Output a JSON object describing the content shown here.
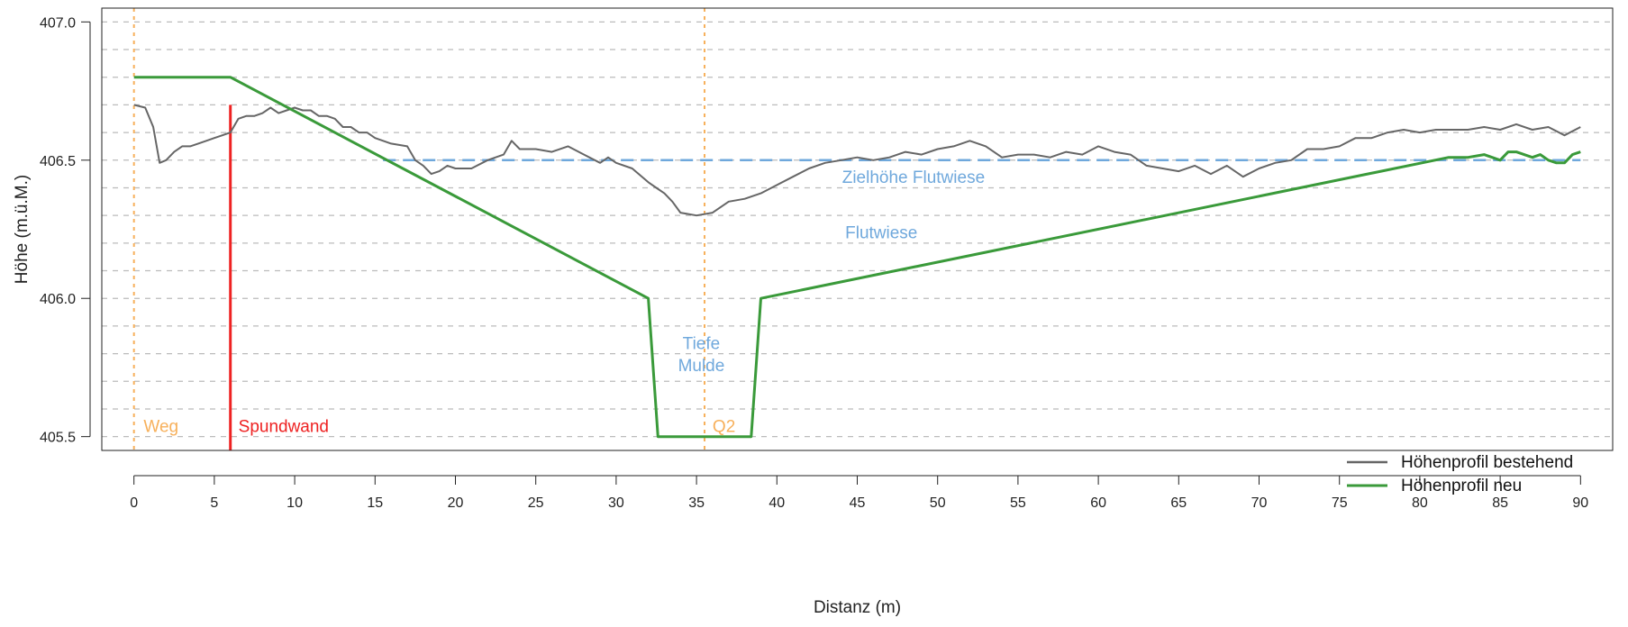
{
  "chart_data": {
    "type": "line",
    "xlabel": "Distanz (m)",
    "ylabel": "Höhe (m.ü.M.)",
    "xlim": [
      -2,
      92
    ],
    "ylim": [
      405.45,
      407.05
    ],
    "xticks": [
      0,
      5,
      10,
      15,
      20,
      25,
      30,
      35,
      40,
      45,
      50,
      55,
      60,
      65,
      70,
      75,
      80,
      85,
      90
    ],
    "yticks": [
      405.5,
      406.0,
      406.5,
      407.0
    ],
    "ytick_labels": [
      "405.5",
      "406.0",
      "406.5",
      "407.0"
    ],
    "grid": "horizontal dashed every 0.1 m",
    "legend_position": "bottom-right",
    "series": [
      {
        "name": "Höhenprofil bestehend",
        "color": "#666666",
        "x": [
          0,
          0.7,
          1.2,
          1.6,
          2.0,
          2.5,
          3.0,
          3.5,
          4.0,
          4.5,
          5.0,
          5.5,
          6.0,
          6.5,
          7.0,
          7.5,
          8.0,
          8.5,
          9.0,
          9.5,
          10.0,
          10.5,
          11.0,
          11.5,
          12.0,
          12.5,
          13.0,
          13.5,
          14.0,
          14.5,
          15.0,
          16.0,
          17.0,
          17.5,
          18.0,
          18.5,
          19.0,
          19.5,
          20.0,
          21.0,
          22.0,
          23.0,
          23.5,
          24.0,
          25.0,
          26.0,
          27.0,
          28.0,
          29.0,
          29.5,
          30.0,
          31.0,
          32.0,
          32.5,
          33.0,
          33.5,
          34.0,
          35.0,
          36.0,
          37.0,
          38.0,
          39.0,
          40.0,
          41.0,
          42.0,
          43.0,
          44.0,
          45.0,
          46.0,
          47.0,
          48.0,
          49.0,
          50.0,
          51.0,
          52.0,
          53.0,
          54.0,
          55.0,
          56.0,
          57.0,
          58.0,
          59.0,
          60.0,
          61.0,
          62.0,
          63.0,
          64.0,
          65.0,
          66.0,
          67.0,
          68.0,
          69.0,
          70.0,
          71.0,
          72.0,
          73.0,
          74.0,
          75.0,
          76.0,
          77.0,
          78.0,
          79.0,
          80.0,
          81.0,
          82.0,
          83.0,
          84.0,
          85.0,
          86.0,
          87.0,
          88.0,
          89.0,
          90.0
        ],
        "y": [
          406.7,
          406.69,
          406.62,
          406.49,
          406.5,
          406.53,
          406.55,
          406.55,
          406.56,
          406.57,
          406.58,
          406.59,
          406.6,
          406.65,
          406.66,
          406.66,
          406.67,
          406.69,
          406.67,
          406.68,
          406.69,
          406.68,
          406.68,
          406.66,
          406.66,
          406.65,
          406.62,
          406.62,
          406.6,
          406.6,
          406.58,
          406.56,
          406.55,
          406.5,
          406.48,
          406.45,
          406.46,
          406.48,
          406.47,
          406.47,
          406.5,
          406.52,
          406.57,
          406.54,
          406.54,
          406.53,
          406.55,
          406.52,
          406.49,
          406.51,
          406.49,
          406.47,
          406.42,
          406.4,
          406.38,
          406.35,
          406.31,
          406.3,
          406.31,
          406.35,
          406.36,
          406.38,
          406.41,
          406.44,
          406.47,
          406.49,
          406.5,
          406.51,
          406.5,
          406.51,
          406.53,
          406.52,
          406.54,
          406.55,
          406.57,
          406.55,
          406.51,
          406.52,
          406.52,
          406.51,
          406.53,
          406.52,
          406.55,
          406.53,
          406.52,
          406.48,
          406.47,
          406.46,
          406.48,
          406.45,
          406.48,
          406.44,
          406.47,
          406.49,
          406.5,
          406.54,
          406.54,
          406.55,
          406.58,
          406.58,
          406.6,
          406.61,
          406.6,
          406.61,
          406.61,
          406.61,
          406.62,
          406.61,
          406.63,
          406.61,
          406.62,
          406.59,
          406.62
        ]
      },
      {
        "name": "Höhenprofil neu",
        "color": "#3a9a3a",
        "x": [
          0,
          6,
          32,
          32.6,
          38.4,
          39,
          81.8,
          83,
          84,
          85,
          85.5,
          86,
          87,
          87.5,
          88,
          88.5,
          89,
          89.5,
          90
        ],
        "y": [
          406.8,
          406.8,
          406.0,
          405.5,
          405.5,
          406.0,
          406.51,
          406.51,
          406.52,
          406.5,
          406.53,
          406.53,
          406.51,
          406.52,
          406.5,
          406.49,
          406.49,
          406.52,
          406.53
        ]
      }
    ],
    "reference_lines": [
      {
        "orientation": "vertical",
        "x": 0,
        "label": "Weg",
        "color": "#f7b05b",
        "style": "dotted"
      },
      {
        "orientation": "vertical",
        "x": 6,
        "y_top": 406.7,
        "label": "Spundwand",
        "color": "#ee2222",
        "style": "solid"
      },
      {
        "orientation": "vertical",
        "x": 35.5,
        "label": "Q2",
        "color": "#f7b05b",
        "style": "dotted"
      },
      {
        "orientation": "horizontal",
        "y": 406.5,
        "x_from": 15.5,
        "x_to": 90,
        "label": "Zielhöhe Flutwiese",
        "color": "#6fa8dc",
        "style": "dashed"
      }
    ],
    "annotations": [
      {
        "text": "Zielhöhe Flutwiese",
        "x": 48.5,
        "y": 406.44,
        "color": "#6fa8dc"
      },
      {
        "text": "Flutwiese",
        "x": 46.5,
        "y": 406.24,
        "color": "#6fa8dc"
      },
      {
        "text": "Tiefe",
        "x": 35.3,
        "y": 405.84,
        "color": "#6fa8dc"
      },
      {
        "text": "Mulde",
        "x": 35.3,
        "y": 405.76,
        "color": "#6fa8dc"
      },
      {
        "text": "Weg",
        "x": 0.6,
        "y": 405.54,
        "color": "#f7b05b"
      },
      {
        "text": "Spundwand",
        "x": 6.5,
        "y": 405.54,
        "color": "#ee2222"
      },
      {
        "text": "Q2",
        "x": 36.0,
        "y": 405.54,
        "color": "#f7b05b"
      }
    ]
  }
}
